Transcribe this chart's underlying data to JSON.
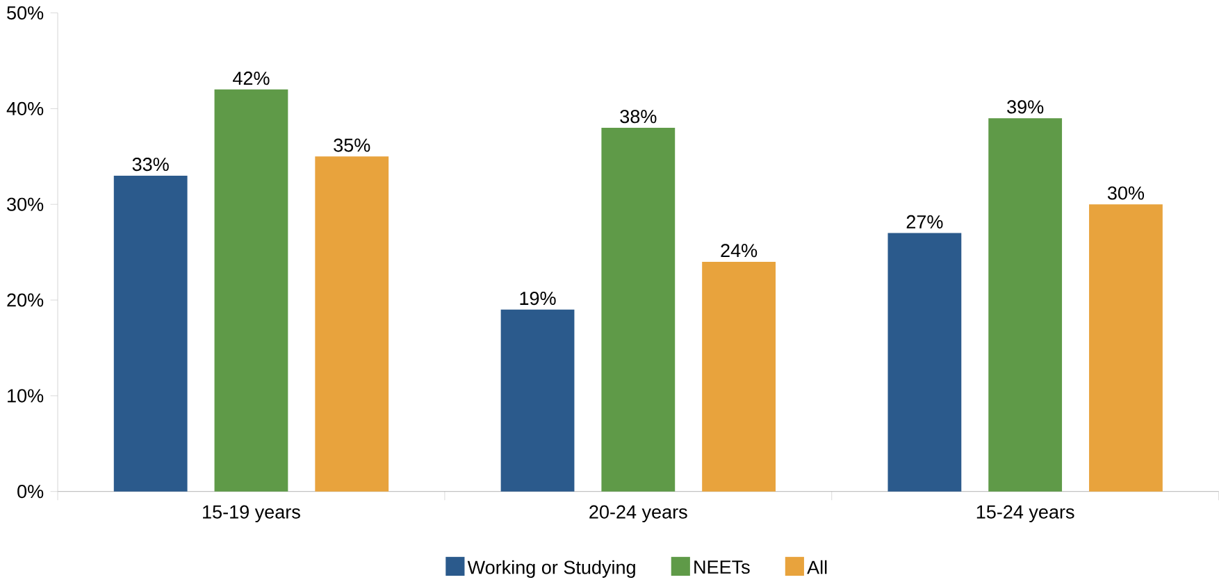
{
  "chart_data": {
    "type": "bar",
    "categories": [
      "15-19 years",
      "20-24 years",
      "15-24 years"
    ],
    "series": [
      {
        "name": "Working or Studying",
        "color": "#2b5a8c",
        "values": [
          33,
          19,
          27
        ],
        "value_labels": [
          "33%",
          "19%",
          "27%"
        ]
      },
      {
        "name": "NEETs",
        "color": "#5f9a48",
        "values": [
          42,
          38,
          39
        ],
        "value_labels": [
          "42%",
          "38%",
          "39%"
        ]
      },
      {
        "name": "All",
        "color": "#e8a33d",
        "values": [
          35,
          24,
          30
        ],
        "value_labels": [
          "35%",
          "24%",
          "30%"
        ]
      }
    ],
    "ylim": [
      0,
      50
    ],
    "yticks": [
      {
        "value": 0,
        "label": "0%"
      },
      {
        "value": 10,
        "label": "10%"
      },
      {
        "value": 20,
        "label": "20%"
      },
      {
        "value": 30,
        "label": "30%"
      },
      {
        "value": 40,
        "label": "40%"
      },
      {
        "value": 50,
        "label": "50%"
      }
    ],
    "legend": "bottom"
  }
}
